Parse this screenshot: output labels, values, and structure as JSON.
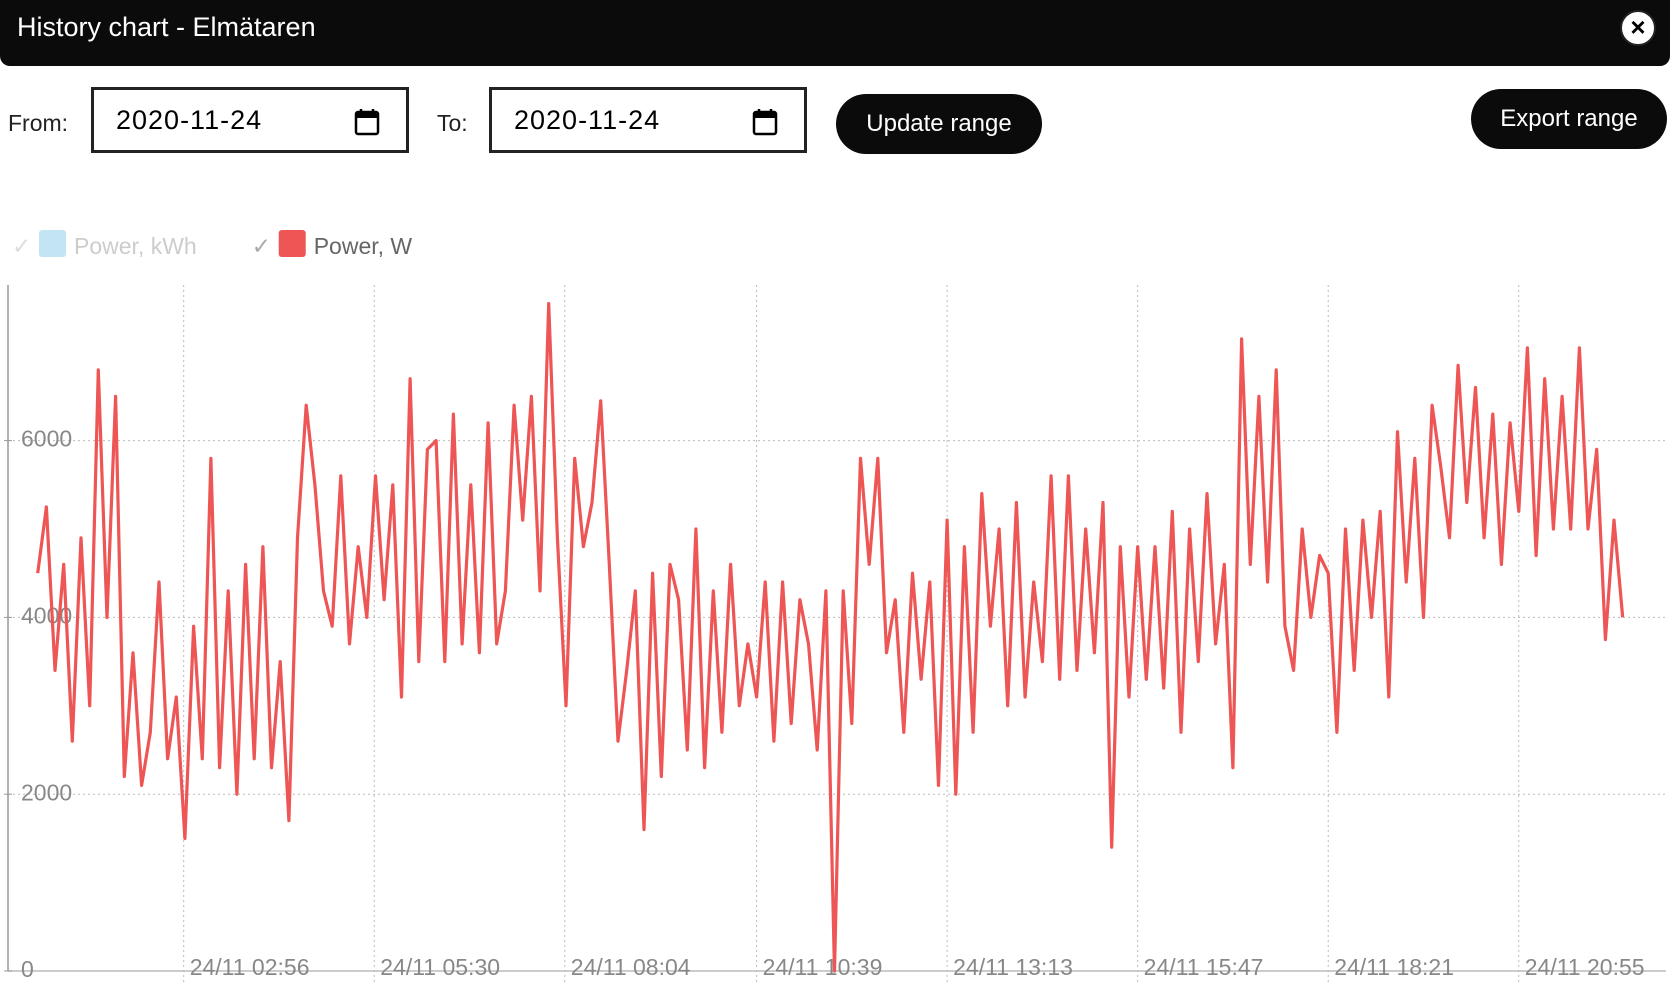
{
  "header": {
    "title": "History chart - Elmätaren"
  },
  "controls": {
    "from_label": "From:",
    "from_date": "2020-11-24",
    "to_label": "To:",
    "to_date": "2020-11-24",
    "update_button": "Update range",
    "export_button": "Export range"
  },
  "chart_data": {
    "type": "line",
    "hidden_series": [
      {
        "name": "Power, kWh",
        "color": "#c3e4f3"
      }
    ],
    "series": [
      {
        "name": "Power, W",
        "color": "#ee5555",
        "values": [
          4500,
          5250,
          3400,
          4600,
          2600,
          4900,
          3000,
          6800,
          4000,
          6500,
          2200,
          3600,
          2100,
          2700,
          4400,
          2400,
          3100,
          1500,
          3900,
          2400,
          5800,
          2300,
          4300,
          2000,
          4600,
          2400,
          4800,
          2300,
          3500,
          1700,
          4900,
          6400,
          5500,
          4300,
          3900,
          5600,
          3700,
          4800,
          4000,
          5600,
          4200,
          5500,
          3100,
          6700,
          3500,
          5900,
          6000,
          3500,
          6300,
          3700,
          5500,
          3600,
          6200,
          3700,
          4300,
          6400,
          5100,
          6500,
          4300,
          7550,
          4900,
          3000,
          5800,
          4800,
          5300,
          6450,
          4600,
          2600,
          3400,
          4300,
          1600,
          4500,
          2200,
          4600,
          4200,
          2500,
          5000,
          2300,
          4300,
          2700,
          4600,
          3000,
          3700,
          3100,
          4400,
          2600,
          4400,
          2800,
          4200,
          3700,
          2500,
          4300,
          0,
          4300,
          2800,
          5800,
          4600,
          5800,
          3600,
          4200,
          2700,
          4500,
          3300,
          4400,
          2100,
          5100,
          2000,
          4800,
          2700,
          5400,
          3900,
          5000,
          3000,
          5300,
          3100,
          4400,
          3500,
          5600,
          3300,
          5600,
          3400,
          5000,
          3600,
          5300,
          1400,
          4800,
          3100,
          4800,
          3300,
          4800,
          3200,
          5200,
          2700,
          5000,
          3500,
          5400,
          3700,
          4600,
          2300,
          7150,
          4600,
          6500,
          4400,
          6800,
          3900,
          3400,
          5000,
          4000,
          4700,
          4500,
          2700,
          5000,
          3400,
          5100,
          4000,
          5200,
          3100,
          6100,
          4400,
          5800,
          4000,
          6400,
          5700,
          4900,
          6850,
          5300,
          6600,
          4900,
          6300,
          4600,
          6200,
          5200,
          7050,
          4700,
          6700,
          5000,
          6500,
          5000,
          7050,
          5000,
          5900,
          3750,
          5100,
          4000
        ]
      }
    ],
    "x": [
      58,
      65,
      72,
      79,
      86,
      93,
      100,
      107,
      114,
      121,
      128,
      135,
      142,
      149,
      156,
      163,
      170,
      177,
      184,
      191,
      198,
      205,
      212,
      219,
      226,
      233,
      240,
      247,
      254,
      261,
      268,
      275,
      282,
      289,
      296,
      303,
      310,
      317,
      324,
      331,
      338,
      345,
      352,
      359,
      366,
      373,
      380,
      387,
      394,
      401,
      408,
      415,
      422,
      429,
      436,
      443,
      450,
      457,
      464,
      471,
      478,
      485,
      492,
      499,
      506,
      513,
      520,
      527,
      534,
      541,
      548,
      555,
      562,
      569,
      576,
      583,
      590,
      597,
      604,
      611,
      618,
      625,
      632,
      639,
      646,
      653,
      660,
      667,
      674,
      681,
      688,
      695,
      702,
      709,
      716,
      723,
      730,
      737,
      744,
      751,
      758,
      765,
      772,
      779,
      786,
      793,
      800,
      807,
      814,
      821,
      828,
      835,
      842,
      849,
      856,
      863,
      870,
      877,
      884,
      891,
      898,
      905,
      912,
      919,
      926,
      933,
      940,
      947,
      954,
      961,
      968,
      975,
      982,
      989,
      996,
      1003,
      1010,
      1017,
      1024,
      1031,
      1038,
      1045,
      1052,
      1059,
      1066,
      1073,
      1080,
      1087,
      1094,
      1101,
      1108,
      1115,
      1122,
      1129,
      1136,
      1143,
      1150,
      1157,
      1164,
      1171,
      1178,
      1185,
      1192,
      1199,
      1206,
      1213,
      1220,
      1227,
      1234,
      1241,
      1248,
      1255,
      1262,
      1269,
      1276,
      1283,
      1290,
      1297,
      1304,
      1311,
      1318,
      1325,
      1332,
      1339
    ],
    "xlim": [
      34,
      1374
    ],
    "xticks": [
      {
        "value": 176,
        "label": "24/11 02:56"
      },
      {
        "value": 330,
        "label": "24/11 05:30"
      },
      {
        "value": 484,
        "label": "24/11 08:04"
      },
      {
        "value": 639,
        "label": "24/11 10:39"
      },
      {
        "value": 793,
        "label": "24/11 13:13"
      },
      {
        "value": 947,
        "label": "24/11 15:47"
      },
      {
        "value": 1101,
        "label": "24/11 18:21"
      },
      {
        "value": 1255,
        "label": "24/11 20:55"
      }
    ],
    "ylim": [
      0,
      7760
    ],
    "yticks": [
      0,
      2000,
      4000,
      6000
    ],
    "grid": true
  }
}
